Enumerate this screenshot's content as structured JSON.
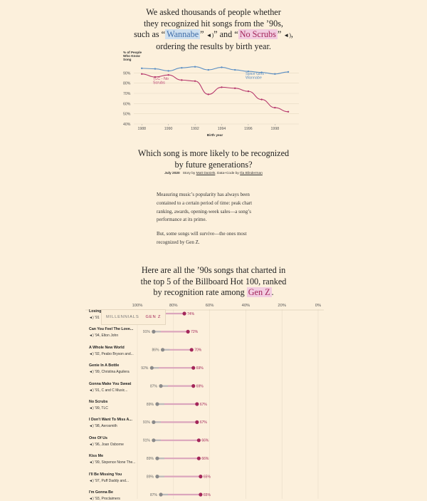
{
  "intro": {
    "line1": "We asked thousands of people whether",
    "line2": "they recognized hit songs from the ’90s,",
    "line3_prefix": "such as “",
    "song_a": "Wannabe",
    "line3_mid": "” and “",
    "song_b": "No Scrubs",
    "line3_suffix": ",",
    "line4": "ordering the results by birth year."
  },
  "question": {
    "line1": "Which song is more likely to be recognized",
    "line2": "by future generations?"
  },
  "byline": {
    "date": "July 2020",
    "story_prefix": "Story by",
    "story_author": "Matt Daniels",
    "code_prefix": ". Data+Code by",
    "code_author": "Ilia Blinderman"
  },
  "body": {
    "p1": "Measuring music’s popularity has always been contained to a certain period of time: peak chart ranking, awards, opening-week sales—a song’s performance at its prime.",
    "p2": "But, some songs will survive—the ones most recognized by Gen Z."
  },
  "here": {
    "line1": "Here are all the ’90s songs that charted in",
    "line2": "the top 5 of the Billboard Hot 100, ranked",
    "line3_prefix": "by recognition rate among",
    "line3_hl": "Gen Z",
    "line3_suffix": "."
  },
  "legend": {
    "millennials": "MILLENNIALS",
    "genz": "GEN Z"
  },
  "colors": {
    "background": "#fcf0dc",
    "spice_girls": "#5b8fc4",
    "tlc": "#b73a6e",
    "millennials": "#8a8a8a",
    "genz": "#a3265a",
    "bar": "#dba6bd"
  },
  "icons": {
    "speaker": "speaker-icon"
  },
  "chart_data": [
    {
      "type": "line",
      "title": "",
      "ylabel": "% of People Who Know Song",
      "xlabel": "Birth year",
      "ylim": [
        40,
        100
      ],
      "xlim": [
        1987.4,
        1999.8
      ],
      "yticks": [
        "40%",
        "50%",
        "60%",
        "70%",
        "80%",
        "90%"
      ],
      "xticks": [
        1988,
        1990,
        1992,
        1994,
        1996,
        1998
      ],
      "grid": true,
      "series": [
        {
          "name": "Spice Girls - Wannabe",
          "x": [
            1988,
            1989,
            1990,
            1991,
            1992,
            1993,
            1994,
            1995,
            1996,
            1997,
            1998,
            1999
          ],
          "y": [
            94.5,
            94,
            92,
            95,
            96,
            93,
            95.5,
            93,
            91.5,
            90.5,
            89,
            91
          ]
        },
        {
          "name": "TLC - No Scrubs",
          "x": [
            1988,
            1989,
            1990,
            1991,
            1992,
            1993,
            1994,
            1995,
            1996,
            1997,
            1998,
            1999
          ],
          "y": [
            89,
            86,
            88,
            83,
            82,
            69,
            76,
            75,
            72,
            64,
            56,
            52
          ]
        }
      ]
    },
    {
      "type": "dot-range",
      "x_axis": [
        "100%",
        "80%",
        "60%",
        "40%",
        "20%",
        "0%"
      ],
      "xlim": [
        100,
        0
      ],
      "series_names": [
        "Millennials",
        "Gen Z"
      ],
      "rows": [
        {
          "title": "Losing My Religion",
          "title_visible": "Losing",
          "year": "’91",
          "artist": "",
          "millennials": null,
          "genz": 74,
          "genz_label": "74%"
        },
        {
          "title": "Can You Feel The Love...",
          "year": "’94",
          "artist": "Elton John",
          "millennials": 91,
          "millennials_label": "91%",
          "genz": 72,
          "genz_label": "72%"
        },
        {
          "title": "A Whole New World",
          "year": "’92",
          "artist": "Peabo Bryson and...",
          "millennials": 86,
          "millennials_label": "86%",
          "genz": 70,
          "genz_label": "70%"
        },
        {
          "title": "Genie In A Bottle",
          "year": "’99",
          "artist": "Christina Aguilera",
          "millennials": 92,
          "millennials_label": "92%",
          "genz": 69,
          "genz_label": "69%"
        },
        {
          "title": "Gonna Make You Sweat",
          "year": "’91",
          "artist": "C and C Music...",
          "millennials": 87,
          "millennials_label": "87%",
          "genz": 69,
          "genz_label": "69%"
        },
        {
          "title": "No Scrubs",
          "year": "’99",
          "artist": "TLC",
          "millennials": 89,
          "millennials_label": "89%",
          "genz": 67,
          "genz_label": "67%"
        },
        {
          "title": "I Don't Want To Miss A...",
          "year": "’98",
          "artist": "Aerosmith",
          "millennials": 91,
          "millennials_label": "91%",
          "genz": 67,
          "genz_label": "67%"
        },
        {
          "title": "One Of Us",
          "year": "’96",
          "artist": "Joan Osborne",
          "millennials": 91,
          "millennials_label": "91%",
          "genz": 66,
          "genz_label": "66%"
        },
        {
          "title": "Kiss Me",
          "year": "’99",
          "artist": "Sixpence None The...",
          "millennials": 89,
          "millennials_label": "89%",
          "genz": 66,
          "genz_label": "66%"
        },
        {
          "title": "I'll Be Missing You",
          "year": "’97",
          "artist": "Puff Daddy and...",
          "millennials": 89,
          "millennials_label": "89%",
          "genz": 65,
          "genz_label": "65%"
        },
        {
          "title": "I'm Gonna Be",
          "year": "’93",
          "artist": "Proclaimers",
          "millennials": 87,
          "millennials_label": "87%",
          "genz": 65,
          "genz_label": "65%"
        }
      ]
    }
  ]
}
